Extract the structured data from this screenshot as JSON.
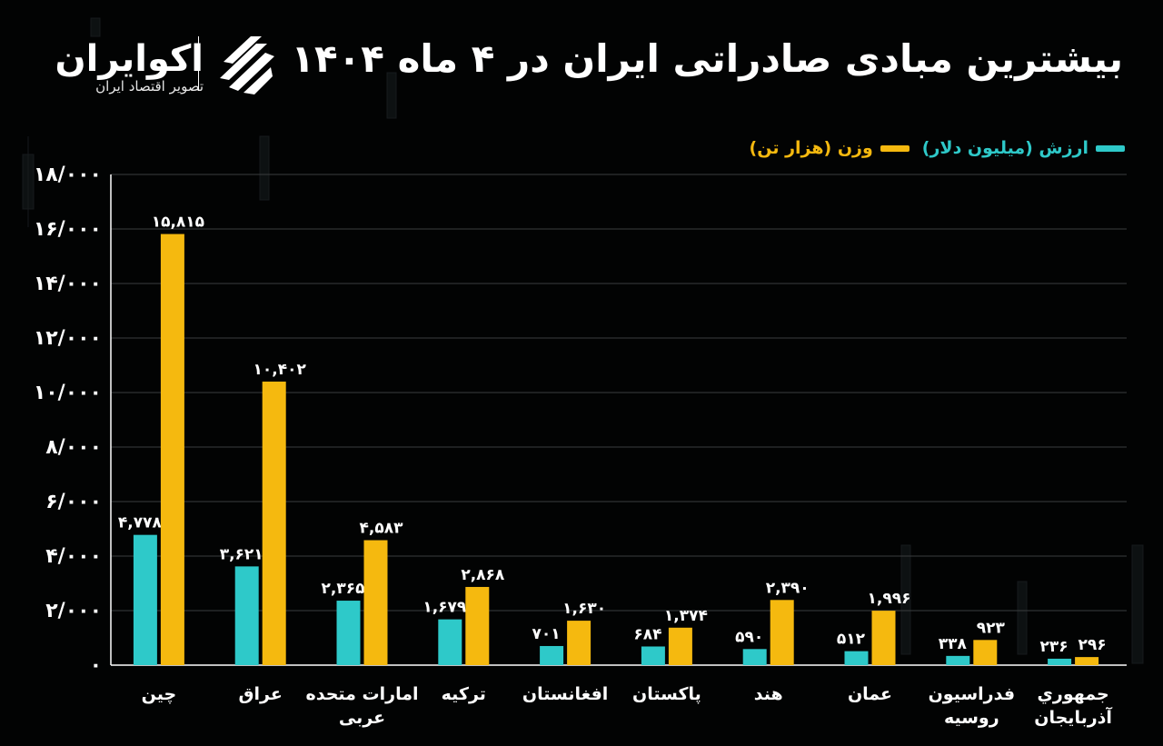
{
  "title": "بیشترین مبادی صادراتی ایران در ۴ ماه ۱۴۰۴",
  "logo": {
    "name": "اکوایران",
    "subtitle": "تصویر اقتصاد ایران"
  },
  "colors": {
    "value": "#2ec9c9",
    "weight": "#f5b90f",
    "grid": "#3a3d3f",
    "background": "#020303"
  },
  "chart_data": {
    "type": "bar",
    "title": "بیشترین مبادی صادراتی ایران در ۴ ماه ۱۴۰۴",
    "categories": [
      [
        "چین"
      ],
      [
        "عراق"
      ],
      [
        "امارات متحده",
        "عربی"
      ],
      [
        "ترکیه"
      ],
      [
        "افغانستان"
      ],
      [
        "پاکستان"
      ],
      [
        "هند"
      ],
      [
        "عمان"
      ],
      [
        "فدراسیون",
        "روسیه"
      ],
      [
        "جمهوري",
        "آذربایجان"
      ]
    ],
    "series": [
      {
        "name": "ارزش (میلیون دلار)",
        "color": "#2ec9c9",
        "values": [
          4778,
          3621,
          2365,
          1679,
          701,
          684,
          590,
          512,
          338,
          236
        ],
        "labels": [
          "۴,۷۷۸",
          "۳,۶۲۱",
          "۲,۳۶۵",
          "۱,۶۷۹",
          "۷۰۱",
          "۶۸۴",
          "۵۹۰",
          "۵۱۲",
          "۳۳۸",
          "۲۳۶"
        ]
      },
      {
        "name": "وزن (هزار تن)",
        "color": "#f5b90f",
        "values": [
          15815,
          10402,
          4583,
          2868,
          1630,
          1374,
          2390,
          1996,
          923,
          296
        ],
        "labels": [
          "۱۵,۸۱۵",
          "۱۰,۴۰۲",
          "۴,۵۸۳",
          "۲,۸۶۸",
          "۱,۶۳۰",
          "۱,۳۷۴",
          "۲,۳۹۰",
          "۱,۹۹۶",
          "۹۲۳",
          "۲۹۶"
        ]
      }
    ],
    "ylim": [
      0,
      18000
    ],
    "yticks": [
      0,
      2000,
      4000,
      6000,
      8000,
      10000,
      12000,
      14000,
      16000,
      18000
    ],
    "ytick_labels": [
      "۰",
      "۲/۰۰۰",
      "۴/۰۰۰",
      "۶/۰۰۰",
      "۸/۰۰۰",
      "۱۰/۰۰۰",
      "۱۲/۰۰۰",
      "۱۴/۰۰۰",
      "۱۶/۰۰۰",
      "۱۸/۰۰۰"
    ],
    "grid": true,
    "legend": "top-right"
  }
}
